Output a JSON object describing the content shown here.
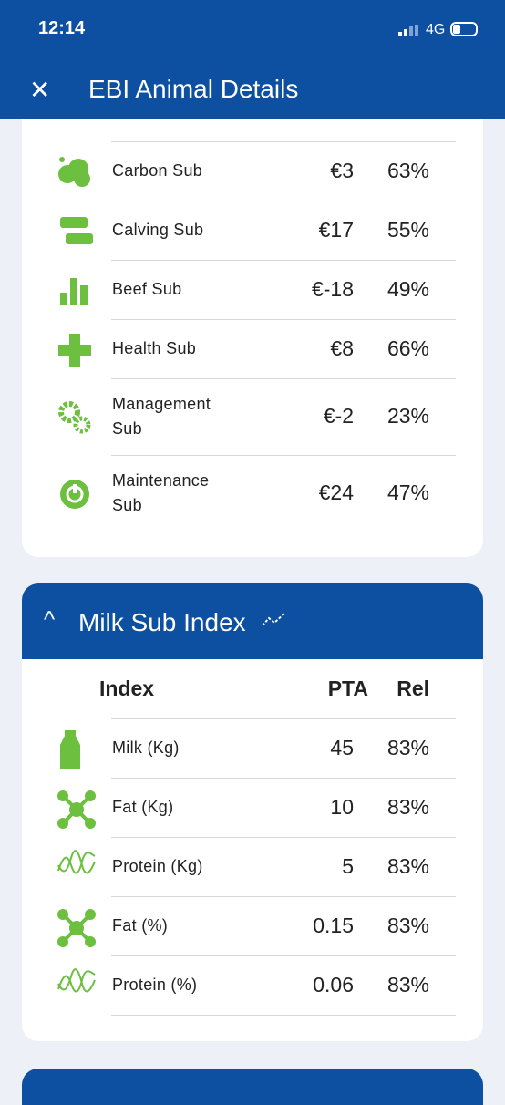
{
  "status_bar": {
    "time": "12:14",
    "network": "4G"
  },
  "header": {
    "title": "EBI Animal Details"
  },
  "sub_indexes": {
    "rows": [
      [
        "Carbon Sub",
        "€3",
        "63%"
      ],
      [
        "Calving Sub",
        "€17",
        "55%"
      ],
      [
        "Beef Sub",
        "€-18",
        "49%"
      ],
      [
        "Health Sub",
        "€8",
        "66%"
      ],
      [
        "Management Sub",
        "€-2",
        "23%"
      ],
      [
        "Maintenance Sub",
        "€24",
        "47%"
      ]
    ]
  },
  "milk_sub_index": {
    "title": "Milk Sub Index",
    "columns": [
      "Index",
      "PTA",
      "Rel"
    ],
    "rows": [
      [
        "Milk (Kg)",
        "45",
        "83%"
      ],
      [
        "Fat (Kg)",
        "10",
        "83%"
      ],
      [
        "Protein (Kg)",
        "5",
        "83%"
      ],
      [
        "Fat (%)",
        "0.15",
        "83%"
      ],
      [
        "Protein (%)",
        "0.06",
        "83%"
      ]
    ]
  }
}
